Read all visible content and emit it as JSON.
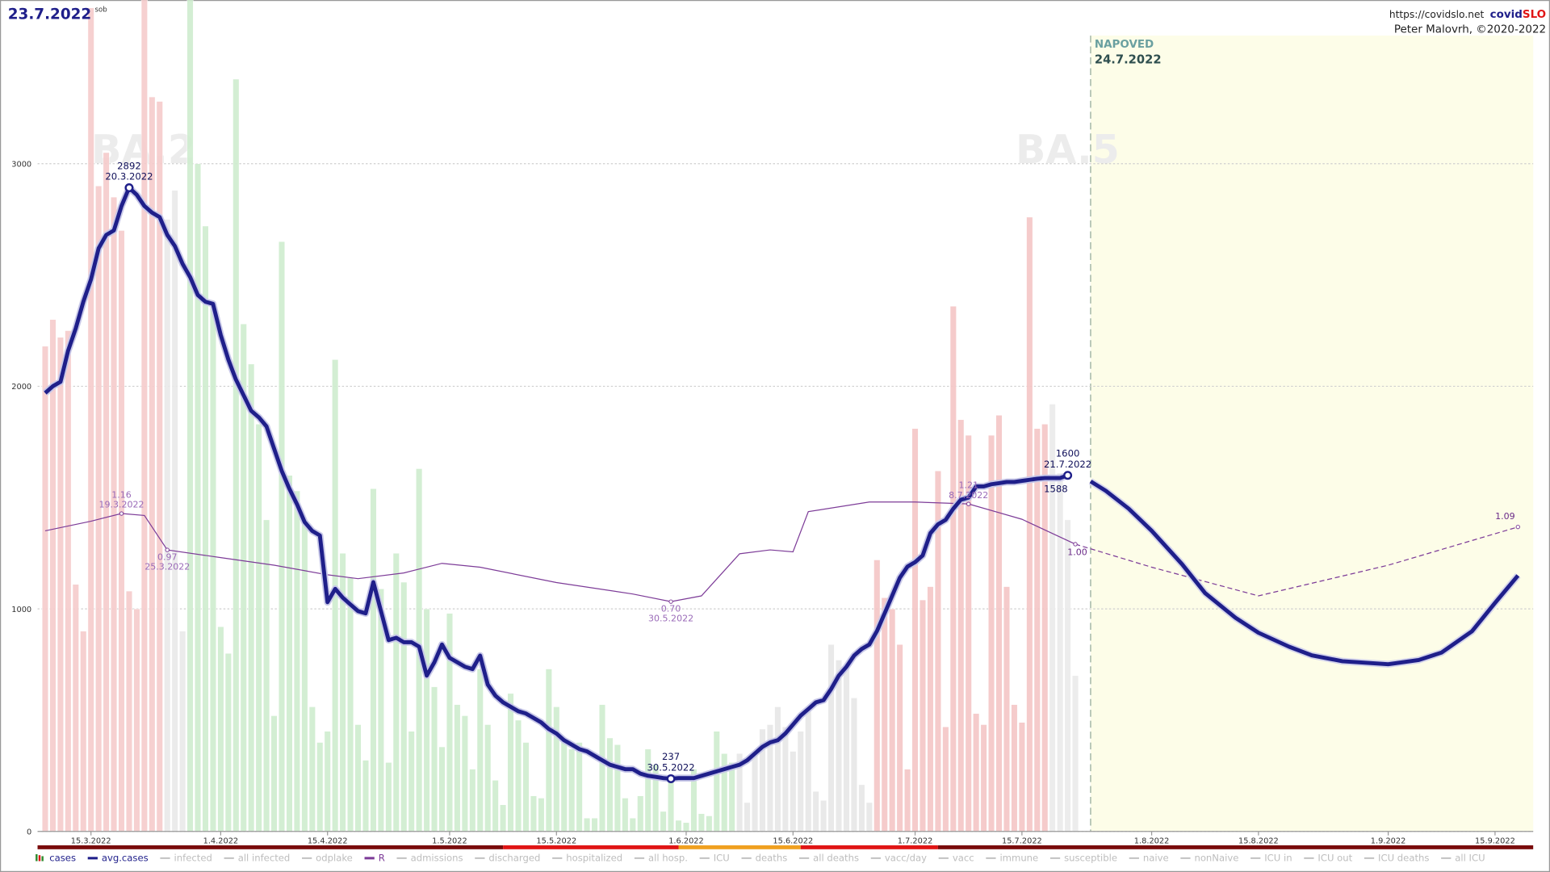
{
  "chart_data": {
    "type": "combo",
    "title": "23.7.2022",
    "weekday": "sob",
    "source": "https://covidslo.net",
    "brand": [
      "covid",
      "SLO"
    ],
    "author": "Peter Malovrh, ©2020-2022",
    "forecast_label": "NAPOVED",
    "forecast_date": "24.7.2022",
    "variants": [
      "BA.2",
      "BA.5"
    ],
    "x": [
      "9.3.2022",
      "10.3.2022",
      "11.3.2022",
      "12.3.2022",
      "13.3.2022",
      "14.3.2022",
      "15.3.2022",
      "16.3.2022",
      "17.3.2022",
      "18.3.2022",
      "19.3.2022",
      "20.3.2022",
      "21.3.2022",
      "22.3.2022",
      "23.3.2022",
      "24.3.2022",
      "25.3.2022",
      "26.3.2022",
      "27.3.2022",
      "28.3.2022",
      "29.3.2022",
      "30.3.2022",
      "31.3.2022",
      "1.4.2022",
      "2.4.2022",
      "3.4.2022",
      "4.4.2022",
      "5.4.2022",
      "6.4.2022",
      "7.4.2022",
      "8.4.2022",
      "9.4.2022",
      "10.4.2022",
      "11.4.2022",
      "12.4.2022",
      "13.4.2022",
      "14.4.2022",
      "15.4.2022",
      "16.4.2022",
      "17.4.2022",
      "18.4.2022",
      "19.4.2022",
      "20.4.2022",
      "21.4.2022",
      "22.4.2022",
      "23.4.2022",
      "24.4.2022",
      "25.4.2022",
      "26.4.2022",
      "27.4.2022",
      "28.4.2022",
      "29.4.2022",
      "30.4.2022",
      "1.5.2022",
      "2.5.2022",
      "3.5.2022",
      "4.5.2022",
      "5.5.2022",
      "6.5.2022",
      "7.5.2022",
      "8.5.2022",
      "9.5.2022",
      "10.5.2022",
      "11.5.2022",
      "12.5.2022",
      "13.5.2022",
      "14.5.2022",
      "15.5.2022",
      "16.5.2022",
      "17.5.2022",
      "18.5.2022",
      "19.5.2022",
      "20.5.2022",
      "21.5.2022",
      "22.5.2022",
      "23.5.2022",
      "24.5.2022",
      "25.5.2022",
      "26.5.2022",
      "27.5.2022",
      "28.5.2022",
      "29.5.2022",
      "30.5.2022",
      "31.5.2022",
      "1.6.2022",
      "2.6.2022",
      "3.6.2022",
      "4.6.2022",
      "5.6.2022",
      "6.6.2022",
      "7.6.2022",
      "8.6.2022",
      "9.6.2022",
      "10.6.2022",
      "11.6.2022",
      "12.6.2022",
      "13.6.2022",
      "14.6.2022",
      "15.6.2022",
      "16.6.2022",
      "17.6.2022",
      "18.6.2022",
      "19.6.2022",
      "20.6.2022",
      "21.6.2022",
      "22.6.2022",
      "23.6.2022",
      "24.6.2022",
      "25.6.2022",
      "26.6.2022",
      "27.6.2022",
      "28.6.2022",
      "29.6.2022",
      "30.6.2022",
      "1.7.2022",
      "2.7.2022",
      "3.7.2022",
      "4.7.2022",
      "5.7.2022",
      "6.7.2022",
      "7.7.2022",
      "8.7.2022",
      "9.7.2022",
      "10.7.2022",
      "11.7.2022",
      "12.7.2022",
      "13.7.2022",
      "14.7.2022",
      "15.7.2022",
      "16.7.2022",
      "17.7.2022",
      "18.7.2022",
      "19.7.2022",
      "20.7.2022",
      "21.7.2022",
      "22.7.2022"
    ],
    "series": [
      {
        "name": "cases",
        "kind": "bar",
        "color": "#2e8b2e",
        "values": [
          2180,
          2300,
          2220,
          2250,
          1110,
          900,
          3700,
          2900,
          3050,
          2850,
          2700,
          1080,
          1000,
          3800,
          3300,
          3280,
          2750,
          2880,
          900,
          3800,
          3000,
          2720,
          2350,
          920,
          800,
          3380,
          2280,
          2100,
          1830,
          1400,
          520,
          2650,
          1600,
          1530,
          1380,
          560,
          400,
          450,
          2120,
          1250,
          1140,
          480,
          320,
          1540,
          1090,
          310,
          1250,
          1120,
          450,
          1630,
          1000,
          650,
          380,
          980,
          570,
          520,
          280,
          730,
          480,
          230,
          120,
          620,
          500,
          400,
          160,
          150,
          730,
          560,
          420,
          370,
          400,
          60,
          60,
          570,
          420,
          390,
          150,
          60,
          160,
          370,
          300,
          90,
          240,
          50,
          40,
          280,
          80,
          70,
          450,
          350,
          310,
          350,
          130,
          350,
          460,
          480,
          560,
          470,
          360,
          450,
          560,
          180,
          140,
          840,
          770,
          730,
          600,
          210,
          130,
          1220,
          1050,
          1000,
          840,
          280,
          1810,
          1040,
          1100,
          1620,
          470,
          2360,
          1850,
          1780,
          530,
          480,
          1780,
          1870,
          1100,
          570,
          490,
          2760,
          1810,
          1830,
          1920,
          1610,
          1400,
          700
        ]
      },
      {
        "name": "avg.cases",
        "kind": "line",
        "color": "#1f1f8a",
        "values": [
          1970,
          2000,
          2020,
          2160,
          2260,
          2380,
          2480,
          2620,
          2680,
          2700,
          2810,
          2892,
          2860,
          2810,
          2780,
          2760,
          2680,
          2630,
          2550,
          2490,
          2410,
          2380,
          2370,
          2230,
          2120,
          2030,
          1960,
          1890,
          1860,
          1820,
          1720,
          1620,
          1540,
          1470,
          1390,
          1350,
          1330,
          1030,
          1090,
          1050,
          1020,
          990,
          980,
          1120,
          990,
          860,
          870,
          850,
          850,
          830,
          700,
          760,
          840,
          780,
          760,
          740,
          730,
          790,
          660,
          610,
          580,
          560,
          540,
          530,
          510,
          490,
          460,
          440,
          410,
          390,
          370,
          360,
          340,
          320,
          300,
          290,
          280,
          280,
          260,
          250,
          245,
          240,
          237,
          240,
          240,
          240,
          250,
          260,
          270,
          280,
          290,
          300,
          320,
          350,
          380,
          400,
          410,
          440,
          480,
          520,
          550,
          580,
          590,
          640,
          700,
          740,
          790,
          820,
          840,
          900,
          980,
          1060,
          1140,
          1190,
          1210,
          1240,
          1340,
          1380,
          1400,
          1450,
          1490,
          1500,
          1550,
          1550,
          1560,
          1565,
          1570,
          1570,
          1575,
          1580,
          1585,
          1588,
          1588,
          1588,
          1600,
          null
        ]
      }
    ],
    "forecast": {
      "x": [
        "24.7.2022",
        "26.7.2022",
        "29.7.2022",
        "1.8.2022",
        "5.8.2022",
        "8.8.2022",
        "12.8.2022",
        "15.8.2022",
        "19.8.2022",
        "22.8.2022",
        "26.8.2022",
        "1.9.2022",
        "5.9.2022",
        "8.9.2022",
        "12.9.2022",
        "15.9.2022",
        "18.9.2022"
      ],
      "values": [
        1573,
        1530,
        1450,
        1351,
        1200,
        1071,
        960,
        893,
        830,
        791,
        765,
        751,
        770,
        804,
        900,
        1027,
        1150
      ]
    },
    "r": {
      "name": "R",
      "color": "#7d3c98",
      "axis": "y2",
      "x": [
        "9.3.2022",
        "15.3.2022",
        "19.3.2022",
        "22.3.2022",
        "25.3.2022",
        "1.4.2022",
        "8.4.2022",
        "15.4.2022",
        "19.4.2022",
        "25.4.2022",
        "30.4.2022",
        "5.5.2022",
        "15.5.2022",
        "25.5.2022",
        "30.5.2022",
        "3.6.2022",
        "8.6.2022",
        "12.6.2022",
        "15.6.2022",
        "17.6.2022",
        "25.6.2022",
        "1.7.2022",
        "8.7.2022",
        "15.7.2022",
        "22.7.2022"
      ],
      "values": [
        1.07,
        1.12,
        1.16,
        1.15,
        0.97,
        0.93,
        0.89,
        0.84,
        0.82,
        0.85,
        0.9,
        0.88,
        0.8,
        0.74,
        0.7,
        0.73,
        0.95,
        0.97,
        0.96,
        1.17,
        1.22,
        1.22,
        1.21,
        1.13,
        1
      ],
      "forecast_x": [
        "22.7.2022",
        "1.8.2022",
        "15.8.2022",
        "1.9.2022",
        "18.9.2022"
      ],
      "forecast_values": [
        1,
        0.88,
        0.73,
        0.89,
        1.09
      ]
    },
    "peak_labels": [
      {
        "value": 2892,
        "date": "20.3.2022"
      },
      {
        "value": 237,
        "date": "30.5.2022"
      },
      {
        "value": 1600,
        "date": "21.7.2022"
      }
    ],
    "last_low_label": 1588,
    "r_labels": [
      {
        "value": 1.16,
        "date": "19.3.2022"
      },
      {
        "value": 0.97,
        "date": "25.3.2022"
      },
      {
        "value": 0.7,
        "label": "0.70",
        "date": "30.5.2022"
      },
      {
        "value": 1.21,
        "date": "8.7.2022"
      },
      {
        "value": 1,
        "label": "1.00",
        "at": "22.7.2022"
      },
      {
        "value": 1.09,
        "at": "18.9.2022"
      }
    ],
    "xlim": [
      "8.3.2022",
      "20.9.2022"
    ],
    "xticks": [
      "15.3.2022",
      "1.4.2022",
      "15.4.2022",
      "1.5.2022",
      "15.5.2022",
      "1.6.2022",
      "15.6.2022",
      "1.7.2022",
      "15.7.2022",
      "1.8.2022",
      "15.8.2022",
      "1.9.2022",
      "15.9.2022"
    ],
    "ylim": [
      0,
      3700
    ],
    "yticks": [
      0,
      1000,
      2000,
      3000
    ],
    "y2lim": [
      -0.5,
      3.8
    ],
    "grid": true,
    "bar_colors": [
      {
        "from": "9.3.2022",
        "to": "24.3.2022",
        "color": "#f6cccc"
      },
      {
        "from": "25.3.2022",
        "to": "27.3.2022",
        "color": "#e9e9e9"
      },
      {
        "from": "28.3.2022",
        "to": "7.6.2022",
        "color": "#cfedcf"
      },
      {
        "from": "8.6.2022",
        "to": "25.6.2022",
        "color": "#e7e7e7"
      },
      {
        "from": "26.6.2022",
        "to": "18.7.2022",
        "color": "#f4c6c6"
      },
      {
        "from": "19.7.2022",
        "to": "22.7.2022",
        "color": "#ebebeb"
      }
    ],
    "status_band": [
      {
        "from": "8.3.2022",
        "to": "7.5.2022",
        "color": "#7a0c0c"
      },
      {
        "from": "8.5.2022",
        "to": "30.5.2022",
        "color": "#e01515"
      },
      {
        "from": "31.5.2022",
        "to": "15.6.2022",
        "color": "#f0a020"
      },
      {
        "from": "16.6.2022",
        "to": "3.7.2022",
        "color": "#e01515"
      },
      {
        "from": "4.7.2022",
        "to": "20.9.2022",
        "color": "#7a0c0c"
      }
    ],
    "legend": [
      {
        "name": "cases",
        "active": true,
        "color": "#1f1f8a"
      },
      {
        "name": "avg.cases",
        "active": true,
        "color": "#1f1f8a"
      },
      {
        "name": "infected",
        "active": false
      },
      {
        "name": "all infected",
        "active": false
      },
      {
        "name": "odplake",
        "active": false
      },
      {
        "name": "R",
        "active": true,
        "color": "#7d3c98"
      },
      {
        "name": "admissions",
        "active": false
      },
      {
        "name": "discharged",
        "active": false
      },
      {
        "name": "hospitalized",
        "active": false
      },
      {
        "name": "all hosp.",
        "active": false
      },
      {
        "name": "ICU",
        "active": false
      },
      {
        "name": "deaths",
        "active": false
      },
      {
        "name": "all deaths",
        "active": false
      },
      {
        "name": "vacc/day",
        "active": false
      },
      {
        "name": "vacc",
        "active": false
      },
      {
        "name": "immune",
        "active": false
      },
      {
        "name": "susceptible",
        "active": false
      },
      {
        "name": "naive",
        "active": false
      },
      {
        "name": "nonNaive",
        "active": false
      },
      {
        "name": "ICU in",
        "active": false
      },
      {
        "name": "ICU out",
        "active": false
      },
      {
        "name": "ICU deaths",
        "active": false
      },
      {
        "name": "all ICU",
        "active": false
      }
    ]
  }
}
